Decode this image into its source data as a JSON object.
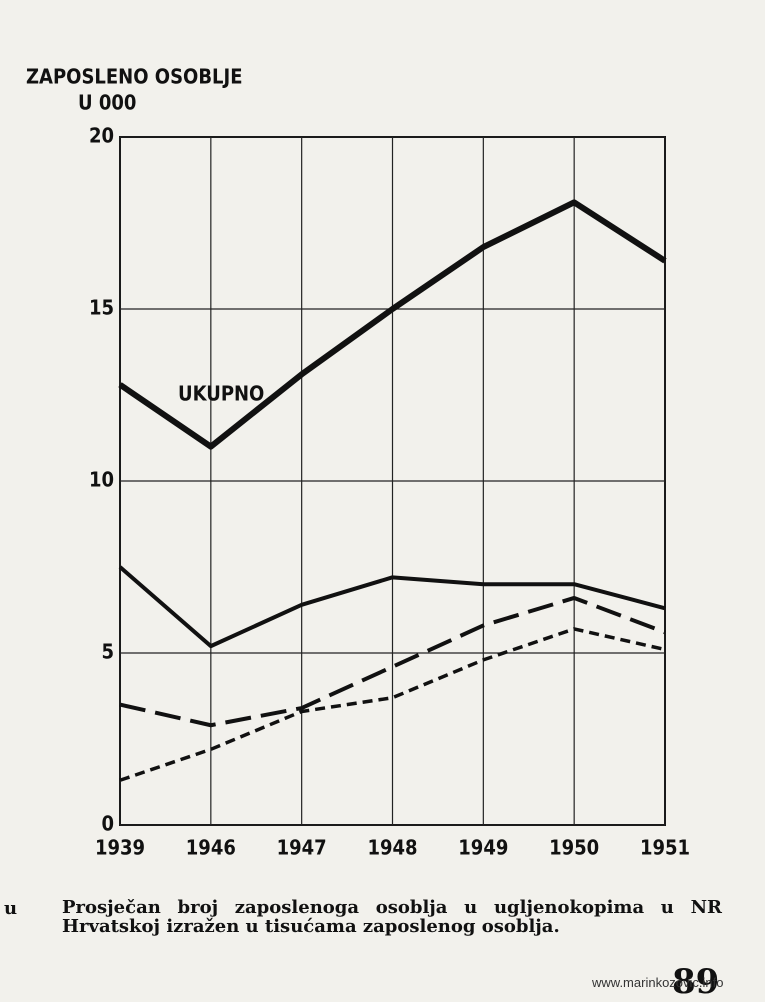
{
  "chart_data": {
    "type": "line",
    "title": "ZAPOSLENO OSOBLJE",
    "y_label": "U 000",
    "categories": [
      "1939",
      "1946",
      "1947",
      "1948",
      "1949",
      "1950",
      "1951"
    ],
    "series": [
      {
        "name": "UKUPNO",
        "color": "#111111",
        "style": "thick",
        "values": [
          12.8,
          11.0,
          13.1,
          15.0,
          16.8,
          18.1,
          16.4
        ]
      },
      {
        "color": "#111111",
        "style": "solid",
        "values": [
          7.5,
          5.2,
          6.4,
          7.2,
          7.0,
          7.0,
          6.3
        ]
      },
      {
        "color": "#111111",
        "style": "long-dash",
        "values": [
          3.5,
          2.9,
          3.4,
          4.6,
          5.8,
          6.6,
          5.6
        ]
      },
      {
        "color": "#111111",
        "style": "short-dash",
        "values": [
          1.3,
          2.2,
          3.3,
          3.7,
          4.8,
          5.7,
          5.1
        ]
      }
    ],
    "ylim": [
      0,
      20
    ],
    "yticks": [
      0,
      5,
      10,
      15,
      20
    ],
    "grid": true
  },
  "caption_marker": "u",
  "caption": "Prosječan broj zaposlenoga osoblja u ugljenokopima u NR Hrvatskoj izražen u tisućama zaposlenog osoblja.",
  "page_number": "89",
  "watermark": "www.marinkozovic.info"
}
